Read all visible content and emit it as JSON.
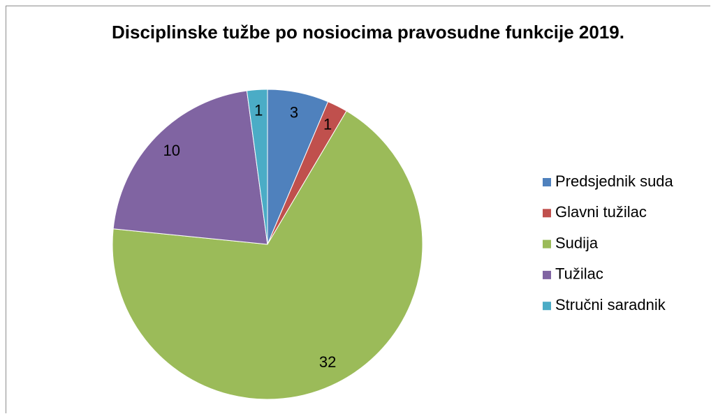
{
  "chart_data": {
    "type": "pie",
    "title": "Disciplinske tužbe po nosiocima pravosudne funkcije 2019.",
    "categories": [
      "Predsjednik suda",
      "Glavni tužilac",
      "Sudija",
      "Tužilac",
      "Stručni saradnik"
    ],
    "values": [
      3,
      1,
      32,
      10,
      1
    ],
    "colors": [
      "#4f81bd",
      "#c0504d",
      "#9bbb59",
      "#8064a2",
      "#4bacc6"
    ],
    "legend": "right"
  }
}
